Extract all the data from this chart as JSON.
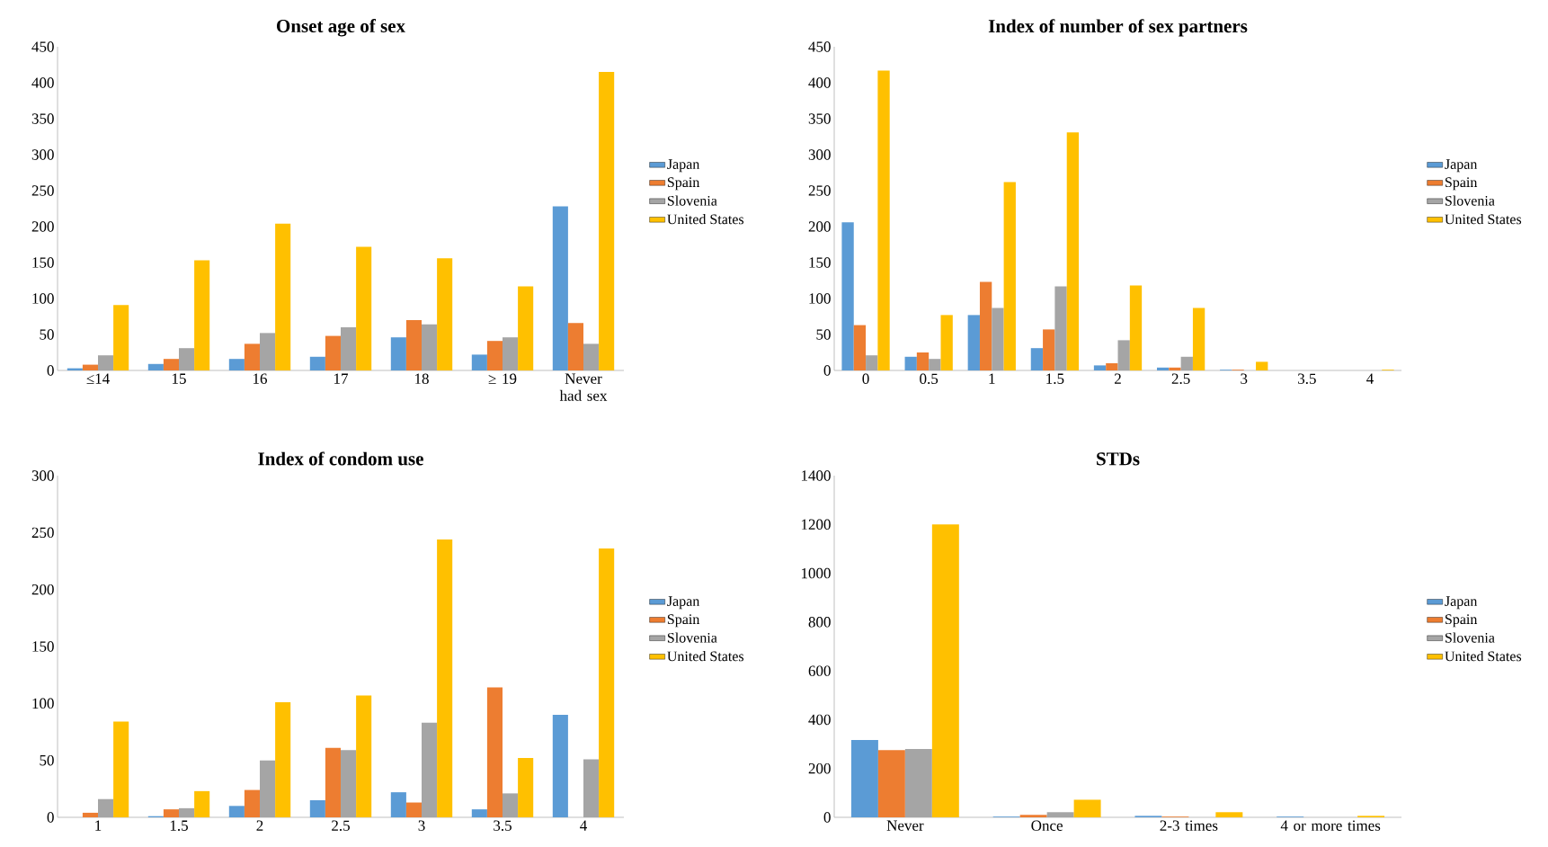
{
  "chart_data": [
    {
      "type": "bar",
      "title": "Onset age of sex",
      "categories": [
        "≤14",
        "15",
        "16",
        "17",
        "18",
        "≥ 19",
        "Never had sex"
      ],
      "ylim": [
        0,
        450
      ],
      "yticks": [
        0,
        50,
        100,
        150,
        200,
        250,
        300,
        350,
        400,
        450
      ],
      "legend": "right",
      "series": [
        {
          "name": "Japan",
          "color": "#5b9bd5",
          "values": [
            3,
            9,
            16,
            19,
            46,
            22,
            228
          ]
        },
        {
          "name": "Spain",
          "color": "#ed7d31",
          "values": [
            8,
            16,
            37,
            48,
            70,
            41,
            66
          ]
        },
        {
          "name": "Slovenia",
          "color": "#a5a5a5",
          "values": [
            21,
            31,
            52,
            60,
            64,
            46,
            37
          ]
        },
        {
          "name": "United States",
          "color": "#ffc000",
          "values": [
            91,
            153,
            204,
            172,
            156,
            117,
            415
          ]
        }
      ]
    },
    {
      "type": "bar",
      "title": "Index of number of sex partners",
      "categories": [
        "0",
        "0.5",
        "1",
        "1.5",
        "2",
        "2.5",
        "3",
        "3.5",
        "4"
      ],
      "ylim": [
        0,
        450
      ],
      "yticks": [
        0,
        50,
        100,
        150,
        200,
        250,
        300,
        350,
        400,
        450
      ],
      "legend": "right",
      "series": [
        {
          "name": "Japan",
          "color": "#5b9bd5",
          "values": [
            206,
            19,
            77,
            31,
            7,
            4,
            1,
            0,
            0
          ]
        },
        {
          "name": "Spain",
          "color": "#ed7d31",
          "values": [
            63,
            25,
            123,
            57,
            10,
            4,
            1,
            0,
            0
          ]
        },
        {
          "name": "Slovenia",
          "color": "#a5a5a5",
          "values": [
            21,
            16,
            87,
            117,
            42,
            19,
            null,
            0,
            0
          ]
        },
        {
          "name": "United States",
          "color": "#ffc000",
          "values": [
            417,
            77,
            262,
            331,
            118,
            87,
            12,
            0,
            1
          ]
        }
      ]
    },
    {
      "type": "bar",
      "title": "Index of condom use",
      "categories": [
        "1",
        "1.5",
        "2",
        "2.5",
        "3",
        "3.5",
        "4"
      ],
      "ylim": [
        0,
        300
      ],
      "yticks": [
        0,
        50,
        100,
        150,
        200,
        250,
        300
      ],
      "legend": "right",
      "series": [
        {
          "name": "Japan",
          "color": "#5b9bd5",
          "values": [
            0,
            1,
            10,
            15,
            22,
            7,
            90
          ]
        },
        {
          "name": "Spain",
          "color": "#ed7d31",
          "values": [
            4,
            7,
            24,
            61,
            13,
            114,
            0
          ]
        },
        {
          "name": "Slovenia",
          "color": "#a5a5a5",
          "values": [
            16,
            8,
            50,
            59,
            83,
            21,
            51
          ]
        },
        {
          "name": "United States",
          "color": "#ffc000",
          "values": [
            84,
            23,
            101,
            107,
            244,
            52,
            236
          ]
        }
      ]
    },
    {
      "type": "bar",
      "title": "STDs",
      "categories": [
        "Never",
        "Once",
        "2-3 times",
        "4 or more times"
      ],
      "ylim": [
        0,
        1400
      ],
      "yticks": [
        0,
        200,
        400,
        600,
        800,
        1000,
        1200,
        1400
      ],
      "legend": "right",
      "series": [
        {
          "name": "Japan",
          "color": "#5b9bd5",
          "values": [
            317,
            3,
            6,
            3
          ]
        },
        {
          "name": "Spain",
          "color": "#ed7d31",
          "values": [
            275,
            10,
            3,
            0
          ]
        },
        {
          "name": "Slovenia",
          "color": "#a5a5a5",
          "values": [
            280,
            21,
            null,
            0
          ]
        },
        {
          "name": "United States",
          "color": "#ffc000",
          "values": [
            1200,
            72,
            21,
            6
          ]
        }
      ]
    }
  ]
}
